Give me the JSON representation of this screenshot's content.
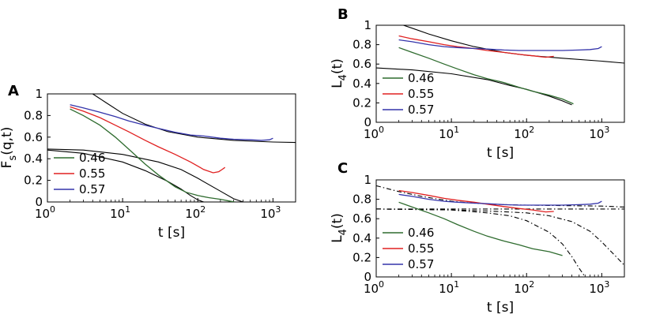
{
  "chart_data": [
    {
      "panel": "A",
      "type": "line",
      "xscale": "log",
      "xlim": [
        1,
        2000
      ],
      "ylim": [
        0,
        1
      ],
      "xticks": [
        {
          "value": 1,
          "base": "10",
          "exp": "0"
        },
        {
          "value": 10,
          "base": "10",
          "exp": "1"
        },
        {
          "value": 100,
          "base": "10",
          "exp": "2"
        },
        {
          "value": 1000,
          "base": "10",
          "exp": "3"
        }
      ],
      "yticks": [
        "0",
        "0.2",
        "0.4",
        "0.6",
        "0.8",
        "1"
      ],
      "xlabel": "t [s]",
      "ylabel": {
        "main": "F",
        "sub": "s",
        "rest": "(q,t)"
      },
      "legend_position": "lower-left",
      "series": [
        {
          "name": "0.46",
          "color": "#2e6b2e",
          "x": [
            2,
            3,
            5,
            8,
            12,
            20,
            30,
            50,
            70,
            100,
            140,
            200,
            280,
            310
          ],
          "y": [
            0.86,
            0.8,
            0.71,
            0.6,
            0.49,
            0.35,
            0.25,
            0.14,
            0.09,
            0.06,
            0.04,
            0.025,
            0.005,
            0.0
          ]
        },
        {
          "name": "0.55",
          "color": "#e02020",
          "x": [
            2,
            3,
            5,
            8,
            12,
            20,
            30,
            50,
            80,
            120,
            160,
            190,
            210,
            230
          ],
          "y": [
            0.88,
            0.84,
            0.78,
            0.71,
            0.65,
            0.57,
            0.51,
            0.44,
            0.37,
            0.3,
            0.27,
            0.28,
            0.3,
            0.32
          ]
        },
        {
          "name": "0.57",
          "color": "#3333aa",
          "x": [
            2,
            3,
            5,
            8,
            12,
            20,
            30,
            50,
            80,
            120,
            200,
            300,
            500,
            700,
            900,
            1000
          ],
          "y": [
            0.9,
            0.87,
            0.83,
            0.79,
            0.75,
            0.71,
            0.68,
            0.645,
            0.62,
            0.61,
            0.59,
            0.58,
            0.575,
            0.57,
            0.575,
            0.59
          ]
        }
      ],
      "fits": [
        {
          "style": "solid",
          "color": "#000000",
          "x": [
            4,
            6,
            10,
            20,
            40,
            100,
            300,
            1000,
            2000
          ],
          "y": [
            1.0,
            0.92,
            0.82,
            0.72,
            0.65,
            0.6,
            0.57,
            0.555,
            0.55
          ]
        },
        {
          "style": "solid",
          "color": "#000000",
          "x": [
            1,
            3,
            10,
            20,
            40,
            60,
            80,
            100,
            120
          ],
          "y": [
            0.48,
            0.45,
            0.37,
            0.29,
            0.19,
            0.12,
            0.06,
            0.02,
            0.0
          ]
        },
        {
          "style": "solid",
          "color": "#000000",
          "x": [
            1,
            3,
            10,
            30,
            60,
            100,
            200,
            300,
            400
          ],
          "y": [
            0.49,
            0.48,
            0.44,
            0.37,
            0.3,
            0.22,
            0.1,
            0.03,
            0.0
          ]
        }
      ]
    },
    {
      "panel": "B",
      "type": "line",
      "xscale": "log",
      "xlim": [
        1,
        2000
      ],
      "ylim": [
        0,
        1
      ],
      "xticks": [
        {
          "value": 1,
          "base": "10",
          "exp": "0"
        },
        {
          "value": 10,
          "base": "10",
          "exp": "1"
        },
        {
          "value": 100,
          "base": "10",
          "exp": "2"
        },
        {
          "value": 1000,
          "base": "10",
          "exp": "3"
        }
      ],
      "yticks": [
        "0",
        "0.2",
        "0.4",
        "0.6",
        "0.8",
        "1"
      ],
      "xlabel": "t [s]",
      "ylabel": {
        "main": "L",
        "sub": "4",
        "rest": "(t)"
      },
      "legend_position": "lower-left",
      "series": [
        {
          "name": "0.46",
          "color": "#2e6b2e",
          "x": [
            2,
            3,
            5,
            8,
            12,
            20,
            30,
            50,
            80,
            120,
            200,
            300,
            420
          ],
          "y": [
            0.77,
            0.72,
            0.66,
            0.6,
            0.55,
            0.49,
            0.45,
            0.41,
            0.36,
            0.32,
            0.28,
            0.24,
            0.19
          ]
        },
        {
          "name": "0.55",
          "color": "#e02020",
          "x": [
            2,
            3,
            5,
            8,
            12,
            20,
            30,
            50,
            80,
            120,
            180,
            230
          ],
          "y": [
            0.89,
            0.86,
            0.83,
            0.8,
            0.78,
            0.76,
            0.74,
            0.72,
            0.7,
            0.685,
            0.67,
            0.68
          ]
        },
        {
          "name": "0.57",
          "color": "#3333aa",
          "x": [
            2,
            3,
            5,
            8,
            12,
            20,
            30,
            50,
            80,
            120,
            200,
            300,
            500,
            700,
            900,
            1000
          ],
          "y": [
            0.85,
            0.83,
            0.8,
            0.78,
            0.77,
            0.76,
            0.755,
            0.745,
            0.74,
            0.74,
            0.74,
            0.74,
            0.745,
            0.75,
            0.76,
            0.78
          ]
        }
      ],
      "fits": [
        {
          "style": "solid",
          "color": "#000000",
          "x": [
            2.3,
            3,
            5,
            10,
            20,
            50,
            100,
            300,
            1000,
            2000
          ],
          "y": [
            1.0,
            0.97,
            0.91,
            0.84,
            0.78,
            0.72,
            0.69,
            0.66,
            0.63,
            0.61
          ]
        },
        {
          "style": "solid",
          "color": "#000000",
          "x": [
            1,
            3,
            10,
            30,
            60,
            100,
            200,
            300,
            400
          ],
          "y": [
            0.56,
            0.54,
            0.5,
            0.44,
            0.38,
            0.34,
            0.27,
            0.22,
            0.18
          ]
        }
      ]
    },
    {
      "panel": "C",
      "type": "line",
      "xscale": "log",
      "xlim": [
        1,
        2000
      ],
      "ylim": [
        0,
        1
      ],
      "xticks": [
        {
          "value": 1,
          "base": "10",
          "exp": "0"
        },
        {
          "value": 10,
          "base": "10",
          "exp": "1"
        },
        {
          "value": 100,
          "base": "10",
          "exp": "2"
        },
        {
          "value": 1000,
          "base": "10",
          "exp": "3"
        }
      ],
      "yticks": [
        "0",
        "0.2",
        "0.4",
        "0.6",
        "0.8",
        "1"
      ],
      "xlabel": "t [s]",
      "ylabel": {
        "main": "L",
        "sub": "4",
        "rest": "(t)"
      },
      "legend_position": "lower-left",
      "series": [
        {
          "name": "0.46",
          "color": "#2e6b2e",
          "x": [
            2,
            3,
            5,
            8,
            12,
            20,
            30,
            50,
            80,
            120,
            200,
            300
          ],
          "y": [
            0.77,
            0.72,
            0.66,
            0.6,
            0.54,
            0.47,
            0.42,
            0.37,
            0.33,
            0.29,
            0.26,
            0.22
          ]
        },
        {
          "name": "0.55",
          "color": "#e02020",
          "x": [
            2,
            3,
            5,
            8,
            12,
            20,
            30,
            50,
            80,
            120,
            180,
            230
          ],
          "y": [
            0.89,
            0.87,
            0.84,
            0.81,
            0.79,
            0.77,
            0.75,
            0.725,
            0.705,
            0.69,
            0.67,
            0.675
          ]
        },
        {
          "name": "0.57",
          "color": "#3333aa",
          "x": [
            2,
            3,
            5,
            8,
            12,
            20,
            30,
            50,
            80,
            120,
            200,
            300,
            500,
            700,
            900,
            1000
          ],
          "y": [
            0.85,
            0.83,
            0.8,
            0.78,
            0.77,
            0.76,
            0.755,
            0.745,
            0.74,
            0.74,
            0.74,
            0.74,
            0.745,
            0.75,
            0.76,
            0.78
          ]
        }
      ],
      "fits": [
        {
          "style": "dashdot",
          "color": "#000000",
          "x": [
            1,
            2,
            4,
            10,
            20,
            50,
            100,
            300,
            1000,
            2000
          ],
          "y": [
            0.94,
            0.88,
            0.83,
            0.78,
            0.76,
            0.745,
            0.74,
            0.735,
            0.73,
            0.72
          ]
        },
        {
          "style": "dashdot",
          "color": "#000000",
          "x": [
            1,
            10,
            100,
            1000,
            2000
          ],
          "y": [
            0.7,
            0.7,
            0.7,
            0.7,
            0.7
          ]
        },
        {
          "style": "dashdot",
          "color": "#000000",
          "x": [
            1,
            10,
            30,
            100,
            200,
            400,
            700,
            1000,
            1500,
            2000
          ],
          "y": [
            0.7,
            0.69,
            0.68,
            0.66,
            0.63,
            0.57,
            0.47,
            0.36,
            0.22,
            0.12
          ]
        },
        {
          "style": "dashdot",
          "color": "#000000",
          "x": [
            1,
            10,
            30,
            60,
            100,
            200,
            300,
            400,
            500,
            600
          ],
          "y": [
            0.7,
            0.69,
            0.66,
            0.63,
            0.58,
            0.46,
            0.34,
            0.21,
            0.09,
            0.0
          ]
        }
      ]
    }
  ]
}
